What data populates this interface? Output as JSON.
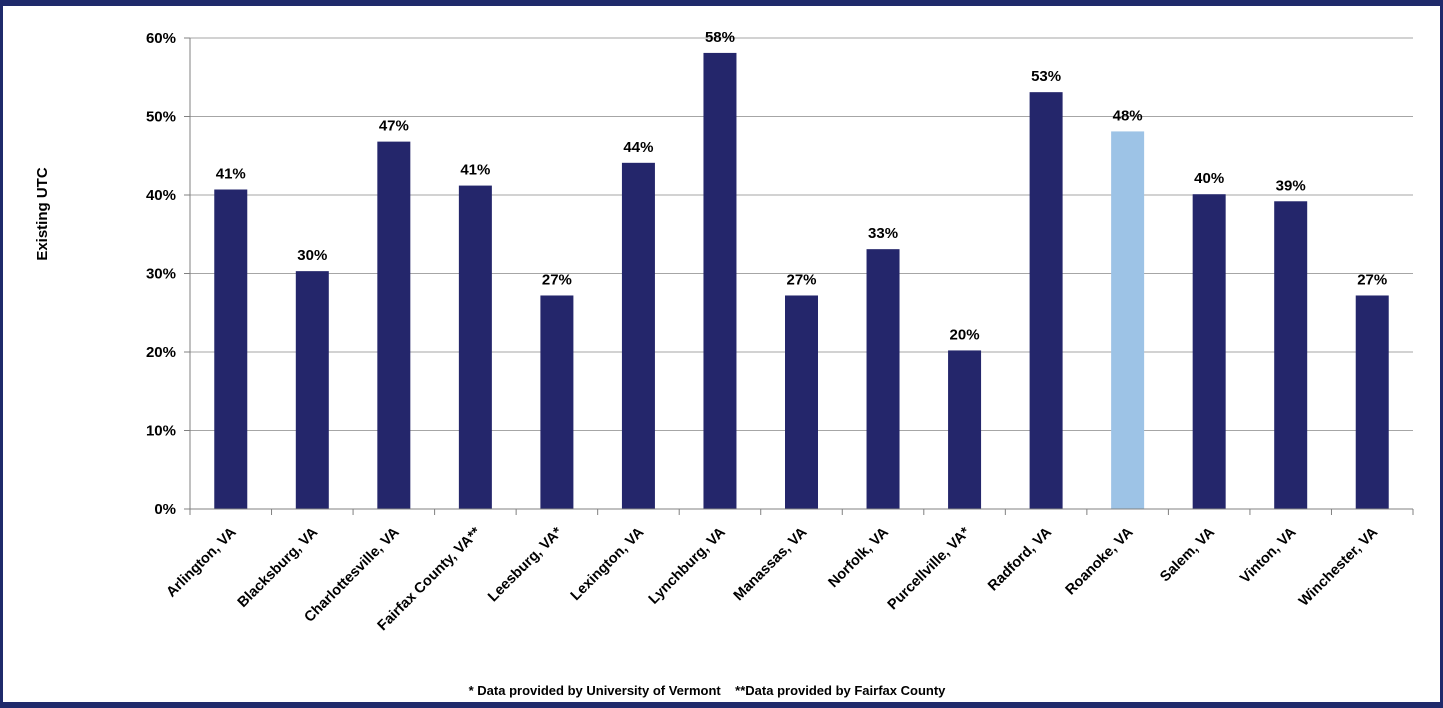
{
  "chart_data": {
    "type": "bar",
    "title": "",
    "xlabel": "",
    "ylabel": "Existing UTC",
    "ylim": [
      0,
      60
    ],
    "yticks": [
      0,
      10,
      20,
      30,
      40,
      50,
      60
    ],
    "ytick_labels": [
      "0%",
      "10%",
      "20%",
      "30%",
      "40%",
      "50%",
      "60%"
    ],
    "grid": true,
    "categories": [
      "Arlington, VA",
      "Blacksburg, VA",
      "Charlottesville, VA",
      "Fairfax County, VA**",
      "Leesburg, VA*",
      "Lexington, VA",
      "Lynchburg, VA",
      "Manassas, VA",
      "Norfolk, VA",
      "Purcellville, VA*",
      "Radford, VA",
      "Roanoke, VA",
      "Salem, VA",
      "Vinton, VA",
      "Winchester, VA"
    ],
    "values": [
      40.7,
      30.3,
      46.8,
      41.2,
      27.2,
      44.1,
      58.1,
      27.2,
      33.1,
      20.2,
      53.1,
      48.1,
      40.1,
      39.2,
      27.2
    ],
    "data_labels": [
      "41%",
      "30%",
      "47%",
      "41%",
      "27%",
      "44%",
      "58%",
      "27%",
      "33%",
      "20%",
      "53%",
      "48%",
      "40%",
      "39%",
      "27%"
    ],
    "highlight_index": 11,
    "colors": {
      "bar": "#24266b",
      "highlight": "#9dc3e6",
      "grid": "#a6a6a6",
      "frame": "#1f2a6b"
    }
  },
  "footnote": "* Data provided by University of Vermont    **Data provided by Fairfax County"
}
